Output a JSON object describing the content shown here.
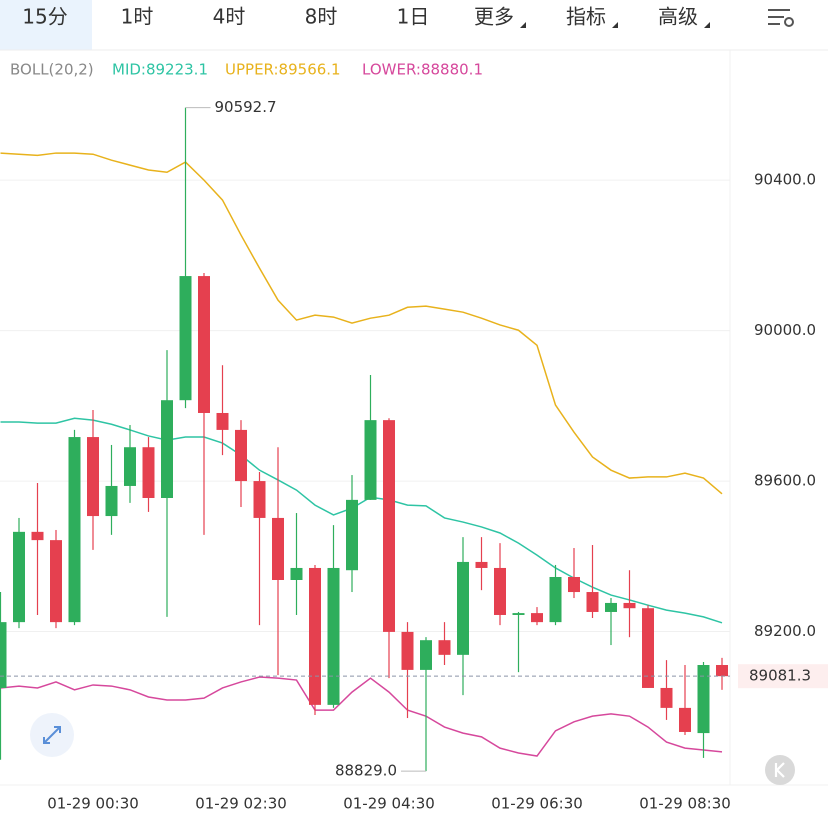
{
  "chart_data": {
    "type": "candlestick",
    "tabs": [
      "15分",
      "1时",
      "4时",
      "8时",
      "1日",
      "更多",
      "指标",
      "高级"
    ],
    "active_tab": 0,
    "up_color": "#2eae5c",
    "down_color": "#e5404f",
    "categories": [
      null,
      null,
      null,
      null,
      null,
      "01-29 00:30",
      null,
      null,
      null,
      null,
      null,
      null,
      null,
      "01-29 02:30",
      null,
      null,
      null,
      null,
      null,
      null,
      null,
      "01-29 04:30",
      null,
      null,
      null,
      null,
      null,
      null,
      null,
      "01-29 06:30",
      null,
      null,
      null,
      null,
      null,
      null,
      null,
      "01-29 08:30",
      null,
      null
    ],
    "open": [
      89050,
      89225,
      89465,
      89443,
      89225,
      89717,
      89507,
      89587,
      89690,
      89555,
      89815,
      90145,
      89781,
      89736,
      89600,
      89502,
      89337,
      89369,
      89005,
      89363,
      89550,
      89762,
      89199,
      89098,
      89177,
      89138,
      89385,
      89369,
      89244,
      89249,
      89225,
      89345,
      89305,
      89252,
      89276,
      89262,
      89050,
      88997,
      88930,
      89111
    ],
    "close": [
      89225,
      89465,
      89443,
      89225,
      89717,
      89507,
      89587,
      89690,
      89555,
      89815,
      90145,
      89781,
      89736,
      89600,
      89502,
      89337,
      89369,
      89005,
      89369,
      89550,
      89762,
      89199,
      89098,
      89177,
      89138,
      89385,
      89369,
      89244,
      89249,
      89225,
      89345,
      89305,
      89252,
      89276,
      89262,
      89050,
      88997,
      88933,
      89111,
      89081.3
    ],
    "high": [
      89305,
      89502,
      89595,
      89470,
      89736,
      89789,
      89696,
      89749,
      89717,
      89948,
      90592.7,
      90153,
      89908,
      89762,
      89624,
      89690,
      89515,
      89377,
      89483,
      89616,
      89882,
      89767,
      89225,
      89185,
      89225,
      89451,
      89451,
      89435,
      89252,
      89265,
      89377,
      89422,
      89430,
      89289,
      89363,
      89270,
      89124,
      89111,
      89119,
      89130
    ],
    "low": [
      88859,
      89209,
      89244,
      89209,
      89217,
      89417,
      89457,
      89542,
      89518,
      89239,
      89794,
      89457,
      89669,
      89531,
      89217,
      89084,
      89244,
      88978,
      88997,
      89305,
      89550,
      89076,
      88970,
      88829,
      89111,
      89031,
      89310,
      89217,
      89092,
      89217,
      89217,
      89289,
      89236,
      89164,
      89185,
      89050,
      88965,
      88925,
      88864,
      89045
    ],
    "annotations": {
      "max": "90592.7",
      "min": "88829.0"
    },
    "indicator": {
      "label": "BOLL(20,2)",
      "series": [
        {
          "label": "MID:89223.1",
          "color": "#2ec4a4",
          "values": [
            89757,
            89757,
            89754,
            89754,
            89767,
            89762,
            89751,
            89736,
            89720,
            89709,
            89717,
            89717,
            89701,
            89669,
            89629,
            89603,
            89576,
            89536,
            89510,
            89528,
            89557,
            89550,
            89536,
            89534,
            89502,
            89491,
            89478,
            89462,
            89435,
            89403,
            89369,
            89342,
            89318,
            89297,
            89284,
            89270,
            89257,
            89249,
            89239,
            89223.1
          ]
        },
        {
          "label": "UPPER:89566.1",
          "color": "#e8b21c",
          "values": [
            90472,
            90469,
            90466,
            90472,
            90472,
            90469,
            90453,
            90440,
            90427,
            90421,
            90448,
            90400,
            90347,
            90254,
            90166,
            90081,
            90028,
            90041,
            90036,
            90020,
            90033,
            90041,
            90062,
            90065,
            90057,
            90049,
            90033,
            90015,
            90001,
            89961,
            89802,
            89730,
            89664,
            89629,
            89608,
            89611,
            89611,
            89621,
            89608,
            89566.1
          ]
        },
        {
          "label": "LOWER:88880.1",
          "color": "#d6489c",
          "values": [
            89050,
            89055,
            89050,
            89066,
            89045,
            89058,
            89055,
            89045,
            89026,
            89018,
            89018,
            89023,
            89050,
            89066,
            89079,
            89076,
            89071,
            88991,
            88991,
            89039,
            89076,
            89039,
            88991,
            88975,
            88946,
            88930,
            88920,
            88890,
            88877,
            88869,
            88936,
            88960,
            88975,
            88981,
            88975,
            88946,
            88906,
            88890,
            88885,
            88880.1
          ]
        }
      ]
    },
    "ylim": [
      88792,
      90746
    ],
    "yticks": [
      {
        "value": 90400,
        "label": "90400.0"
      },
      {
        "value": 90000,
        "label": "90000.0"
      },
      {
        "value": 89600,
        "label": "89600.0"
      },
      {
        "value": 89200,
        "label": "89200.0"
      }
    ],
    "grid": true
  }
}
